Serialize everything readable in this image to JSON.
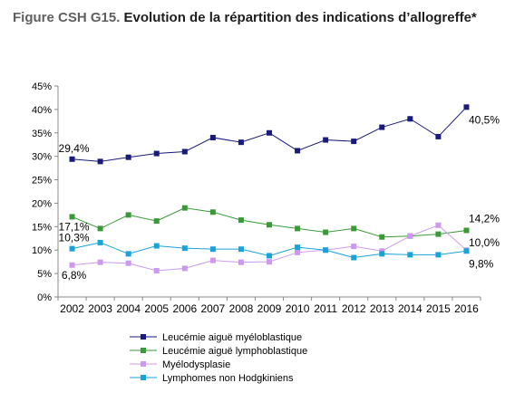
{
  "header": {
    "figure_label": "Figure CSH G15.",
    "title": "Evolution de la répartition des indications d’allogreffe*"
  },
  "chart_data": {
    "type": "line",
    "title": "Evolution de la répartition des indications d’allogreffe*",
    "x": [
      2002,
      2003,
      2004,
      2005,
      2006,
      2007,
      2008,
      2009,
      2010,
      2011,
      2012,
      2013,
      2014,
      2015,
      2016
    ],
    "ylim": [
      0,
      45
    ],
    "yticks": [
      "0%",
      "5%",
      "10%",
      "15%",
      "20%",
      "25%",
      "30%",
      "35%",
      "40%",
      "45%"
    ],
    "grid": false,
    "legend_position": "bottom",
    "series": [
      {
        "name": "Leucémie aiguë myéloblastique",
        "color": "#1a1a7a",
        "values": [
          29.4,
          28.9,
          29.8,
          30.6,
          31.0,
          34.0,
          33.0,
          35.0,
          31.2,
          33.5,
          33.2,
          36.2,
          38.0,
          34.2,
          40.5
        ],
        "labels": [
          {
            "index": 0,
            "text": "29,4%",
            "pos": "above"
          },
          {
            "index": 14,
            "text": "40,5%",
            "pos": "below-right"
          }
        ]
      },
      {
        "name": "Leucémie aiguë lymphoblastique",
        "color": "#3a9a3a",
        "values": [
          17.1,
          14.6,
          17.5,
          16.2,
          19.0,
          18.1,
          16.4,
          15.4,
          14.6,
          13.8,
          14.6,
          12.8,
          13.0,
          13.4,
          14.2
        ],
        "labels": [
          {
            "index": 0,
            "text": "17,1%",
            "pos": "below"
          },
          {
            "index": 14,
            "text": "14,2%",
            "pos": "above-right"
          }
        ]
      },
      {
        "name": "Myélodysplasie",
        "color": "#cc99ee",
        "values": [
          6.8,
          7.4,
          7.2,
          5.6,
          6.1,
          7.8,
          7.4,
          7.5,
          9.5,
          10.0,
          10.8,
          9.8,
          13.0,
          15.3,
          10.0
        ],
        "labels": [
          {
            "index": 0,
            "text": "6,8%",
            "pos": "below"
          },
          {
            "index": 14,
            "text": "10,0%",
            "pos": "right"
          }
        ]
      },
      {
        "name": "Lymphomes non Hodgkiniens",
        "color": "#1aa3d9",
        "values": [
          10.3,
          11.6,
          9.2,
          10.9,
          10.4,
          10.2,
          10.2,
          8.8,
          10.6,
          10.0,
          8.4,
          9.2,
          9.0,
          9.0,
          9.8
        ],
        "labels": [
          {
            "index": 0,
            "text": "10,3%",
            "pos": "above"
          },
          {
            "index": 14,
            "text": "9,8%",
            "pos": "below-right"
          }
        ]
      }
    ]
  }
}
